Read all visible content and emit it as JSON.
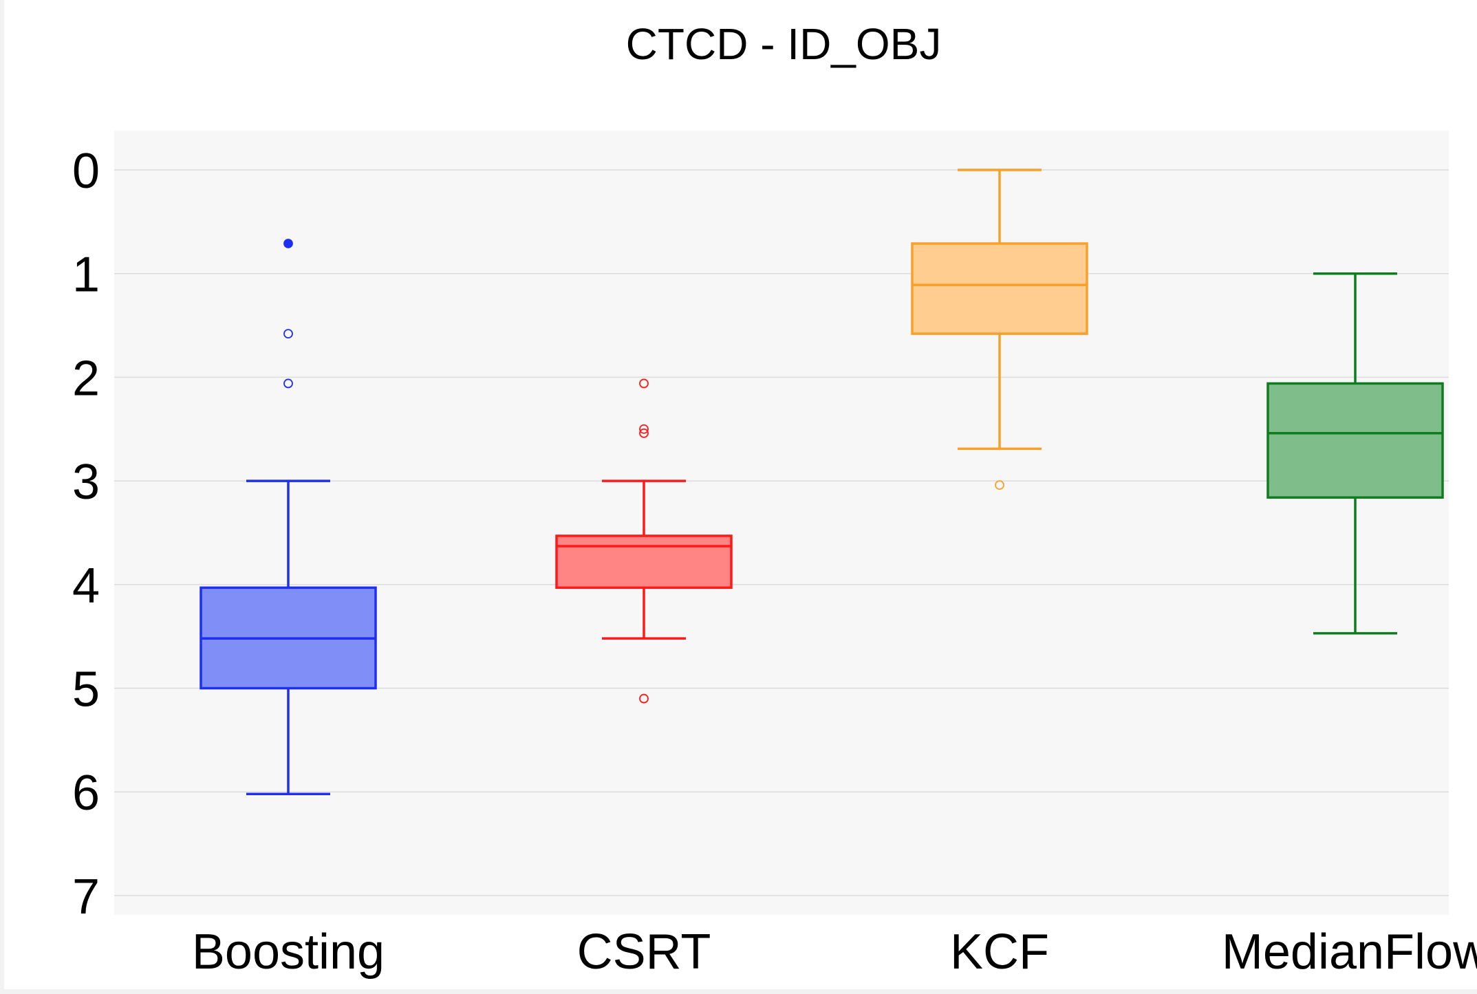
{
  "chart_data": {
    "type": "box",
    "title": "CTCD - ID_OBJ",
    "xlabel": "",
    "ylabel": "",
    "y_axis": {
      "range": [
        0,
        7.2
      ],
      "reversed": true,
      "ticks": [
        0,
        1,
        2,
        3,
        4,
        5,
        6,
        7
      ]
    },
    "grid": true,
    "plot_background": "#f7f7f7",
    "categories": [
      "Boosting",
      "CSRT",
      "KCF",
      "MedianFlow"
    ],
    "series": [
      {
        "category": "Boosting",
        "color": "#1f2ff0",
        "fill": "#7f8ff7",
        "whisker_low": 3.0,
        "q1": 4.03,
        "median": 4.52,
        "q3": 5.0,
        "whisker_high": 6.02,
        "outliers": [
          0.71,
          1.58,
          2.06
        ]
      },
      {
        "category": "CSRT",
        "color": "#ff1a1a",
        "fill": "#ff8585",
        "whisker_low": 3.0,
        "q1": 3.53,
        "median": 3.63,
        "q3": 4.03,
        "whisker_high": 4.52,
        "outliers": [
          2.06,
          2.5,
          2.54,
          5.1
        ]
      },
      {
        "category": "KCF",
        "color": "#f8a02a",
        "fill": "#ffcd8f",
        "whisker_low": 0.0,
        "q1": 0.71,
        "median": 1.11,
        "q3": 1.58,
        "whisker_high": 2.69,
        "outliers": [
          3.04
        ]
      },
      {
        "category": "MedianFlow",
        "color": "#0e7d1f",
        "fill": "#7fbd8b",
        "whisker_low": 1.0,
        "q1": 2.06,
        "median": 2.54,
        "q3": 3.16,
        "whisker_high": 4.47,
        "outliers": []
      }
    ]
  }
}
